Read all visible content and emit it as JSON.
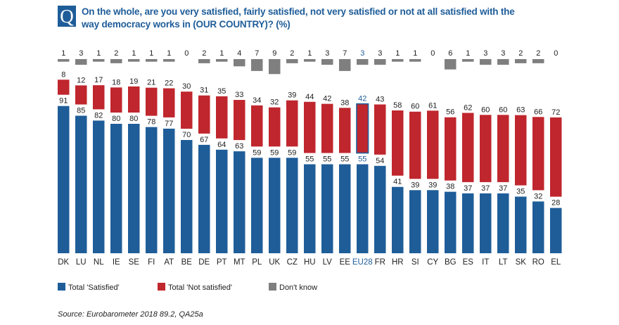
{
  "header": {
    "badge": "Q",
    "title": "On the whole, are you very satisfied, fairly satisfied, not very satisfied or not at all satisfied with the way democracy works in (OUR COUNTRY)? (%)"
  },
  "legend": {
    "satisfied": "Total 'Satisfied'",
    "not_satisfied": "Total 'Not satisfied'",
    "dont_know": "Don't know"
  },
  "source": "Source: Eurobarometer 2018 89.2, QA25a",
  "colors": {
    "satisfied": "#1f5d99",
    "not_satisfied": "#c0262d",
    "dont_know": "#7f7f7f",
    "highlight_text": "#1f5d99"
  },
  "chart_data": {
    "type": "bar",
    "stacked": true,
    "ylim": [
      0,
      100
    ],
    "grid": false,
    "legend_position": "bottom",
    "highlight_category": "EU28",
    "categories": [
      "DK",
      "LU",
      "NL",
      "IE",
      "SE",
      "FI",
      "AT",
      "BE",
      "DE",
      "PT",
      "MT",
      "PL",
      "UK",
      "CZ",
      "HU",
      "LV",
      "EE",
      "EU28",
      "FR",
      "HR",
      "SI",
      "CY",
      "BG",
      "ES",
      "IT",
      "LT",
      "SK",
      "RO",
      "EL"
    ],
    "series": [
      {
        "name": "Total 'Satisfied'",
        "values": [
          91,
          85,
          82,
          80,
          80,
          78,
          77,
          70,
          67,
          64,
          63,
          59,
          59,
          59,
          55,
          55,
          55,
          55,
          54,
          41,
          39,
          39,
          38,
          37,
          37,
          37,
          35,
          32,
          28
        ]
      },
      {
        "name": "Total 'Not satisfied'",
        "values": [
          8,
          12,
          17,
          18,
          19,
          21,
          22,
          30,
          31,
          35,
          33,
          34,
          32,
          39,
          44,
          42,
          38,
          42,
          43,
          58,
          60,
          61,
          56,
          62,
          60,
          60,
          63,
          66,
          72
        ]
      },
      {
        "name": "Don't know",
        "values": [
          1,
          3,
          1,
          2,
          1,
          1,
          1,
          0,
          2,
          1,
          4,
          7,
          9,
          2,
          1,
          3,
          7,
          3,
          3,
          1,
          1,
          0,
          6,
          1,
          3,
          3,
          2,
          2,
          0
        ]
      }
    ]
  }
}
